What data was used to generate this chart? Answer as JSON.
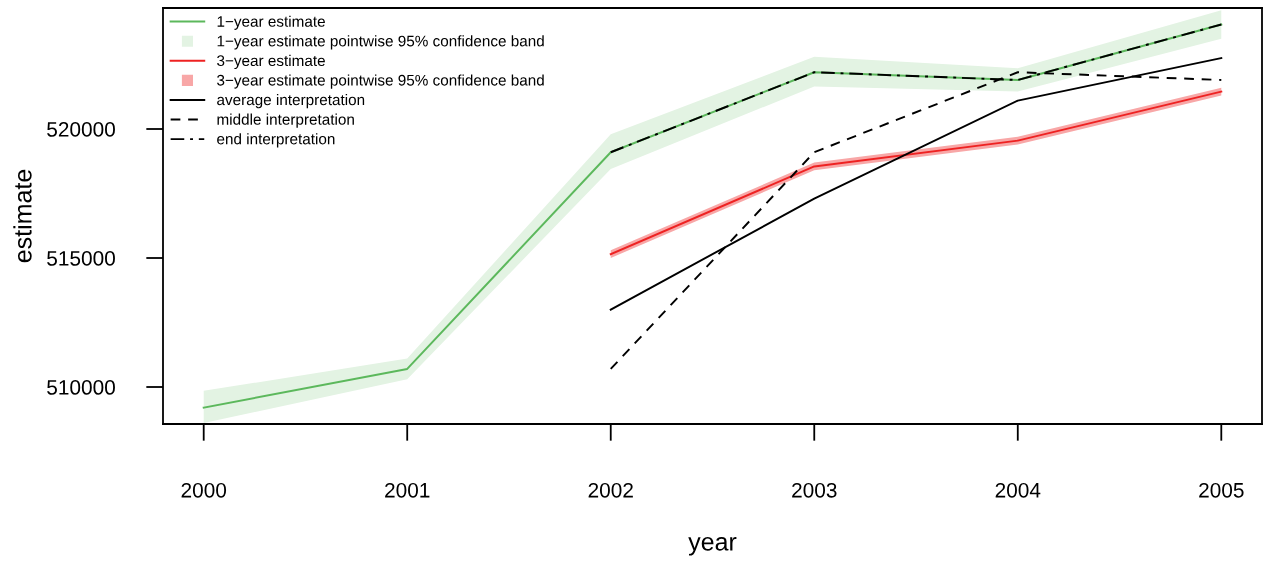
{
  "chart_data": {
    "type": "line",
    "xlabel": "year",
    "ylabel": "estimate",
    "xlim": [
      1999.8,
      2005.2
    ],
    "ylim": [
      508566,
      524690
    ],
    "xticks": [
      2000,
      2001,
      2002,
      2003,
      2004,
      2005
    ],
    "yticks": [
      510000,
      515000,
      520000
    ],
    "grid": false,
    "legend": "top left",
    "annotations": [
      "1−year estimate pointwise 95% confidence band",
      "3−year estimate pointwise 95% confidence band"
    ],
    "series": [
      {
        "name": "1−year estimate",
        "color": "#5cb85c",
        "line_style": "solid",
        "x": [
          2000,
          2001,
          2002,
          2003,
          2004,
          2005
        ],
        "values": [
          509200,
          510700,
          519100,
          522200,
          521900,
          524050
        ],
        "lower": [
          508600,
          510300,
          518450,
          521650,
          521450,
          523500
        ],
        "upper": [
          509850,
          511100,
          519800,
          522800,
          522350,
          524600
        ]
      },
      {
        "name": "3−year estimate",
        "color": "#ee2222",
        "line_style": "solid",
        "x": [
          2002,
          2003,
          2004,
          2005
        ],
        "values": [
          515150,
          518550,
          519550,
          521450
        ],
        "lower": [
          515000,
          518400,
          519400,
          521300
        ],
        "upper": [
          515300,
          518700,
          519700,
          521600
        ]
      },
      {
        "name": "average interpretation",
        "color": "#000000",
        "line_style": "solid",
        "x": [
          2002,
          2003,
          2004,
          2005
        ],
        "values": [
          513000,
          517300,
          521100,
          522750
        ]
      },
      {
        "name": "middle interpretation",
        "color": "#000000",
        "line_style": "dashed",
        "x": [
          2002,
          2003,
          2004,
          2005
        ],
        "values": [
          510700,
          519100,
          522200,
          521900
        ]
      },
      {
        "name": "end interpretation",
        "color": "#000000",
        "line_style": "dashdot",
        "x": [
          2002,
          2003,
          2004,
          2005
        ],
        "values": [
          519100,
          522200,
          521900,
          524050
        ]
      }
    ]
  }
}
